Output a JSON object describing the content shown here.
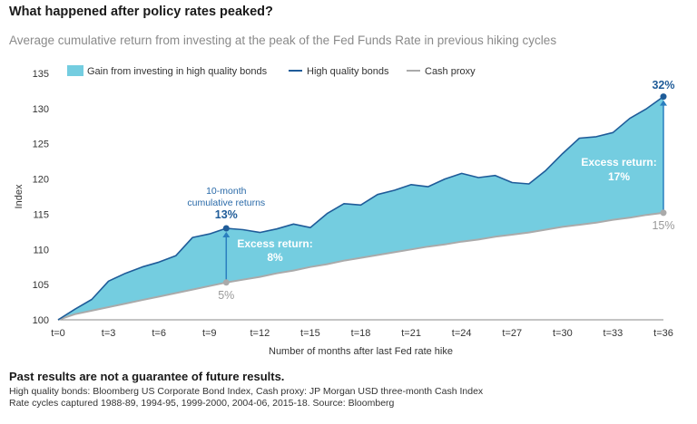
{
  "title": "What happened after policy rates peaked?",
  "subtitle": "Average cumulative return from investing at the peak of the Fed Funds Rate in previous hiking cycles",
  "colors": {
    "area": "#74cde0",
    "bonds": "#1f5c99",
    "cash": "#aaaaaa",
    "accent": "#1f5c99"
  },
  "chart_data": {
    "type": "line",
    "xlabel": "Number of months after last Fed rate hike",
    "ylabel": "Index",
    "ylim": [
      100,
      135
    ],
    "yticks": [
      100,
      105,
      110,
      115,
      120,
      125,
      130,
      135
    ],
    "x": [
      0,
      1,
      2,
      3,
      4,
      5,
      6,
      7,
      8,
      9,
      10,
      11,
      12,
      13,
      14,
      15,
      16,
      17,
      18,
      19,
      20,
      21,
      22,
      23,
      24,
      25,
      26,
      27,
      28,
      29,
      30,
      31,
      32,
      33,
      34,
      35,
      36
    ],
    "xtick_labels": [
      "t=0",
      "t=3",
      "t=6",
      "t=9",
      "t=12",
      "t=15",
      "t=18",
      "t=21",
      "t=24",
      "t=27",
      "t=30",
      "t=33",
      "t=36"
    ],
    "xtick_values": [
      0,
      3,
      6,
      9,
      12,
      15,
      18,
      21,
      24,
      27,
      30,
      33,
      36
    ],
    "series": [
      {
        "name": "High quality bonds",
        "values": [
          100,
          101.5,
          102.9,
          105.5,
          106.6,
          107.5,
          108.2,
          109.1,
          111.7,
          112.2,
          113.0,
          112.8,
          112.4,
          112.9,
          113.6,
          113.1,
          115.1,
          116.5,
          116.3,
          117.8,
          118.4,
          119.2,
          118.9,
          120.0,
          120.8,
          120.2,
          120.5,
          119.5,
          119.3,
          121.2,
          123.6,
          125.8,
          126.0,
          126.6,
          128.6,
          130.0,
          131.7
        ]
      },
      {
        "name": "Cash proxy",
        "values": [
          100,
          100.8,
          101.3,
          101.8,
          102.3,
          102.8,
          103.3,
          103.8,
          104.3,
          104.8,
          105.3,
          105.7,
          106.1,
          106.6,
          107.0,
          107.5,
          107.9,
          108.4,
          108.8,
          109.2,
          109.6,
          110.0,
          110.4,
          110.7,
          111.1,
          111.4,
          111.8,
          112.1,
          112.4,
          112.8,
          113.2,
          113.5,
          113.8,
          114.2,
          114.5,
          114.9,
          115.2
        ]
      }
    ],
    "legend": {
      "position": "top",
      "items": [
        "Gain from investing in high quality bonds",
        "High quality bonds",
        "Cash proxy"
      ]
    },
    "annotations": {
      "ten_month_label": [
        "10-month",
        "cumulative returns"
      ],
      "ten_month_bonds": "13%",
      "ten_month_cash": "5%",
      "excess_1": [
        "Excess return:",
        "8%"
      ],
      "end_bonds": "32%",
      "end_cash": "15%",
      "excess_2": [
        "Excess return:",
        "17%"
      ]
    }
  },
  "footer": {
    "disclaimer": "Past results are not a guarantee of future results.",
    "notes": [
      "High quality bonds: Bloomberg US Corporate Bond Index, Cash proxy: JP Morgan USD three-month Cash Index",
      "Rate cycles captured 1988-89, 1994-95, 1999-2000, 2004-06, 2015-18. Source: Bloomberg"
    ]
  }
}
